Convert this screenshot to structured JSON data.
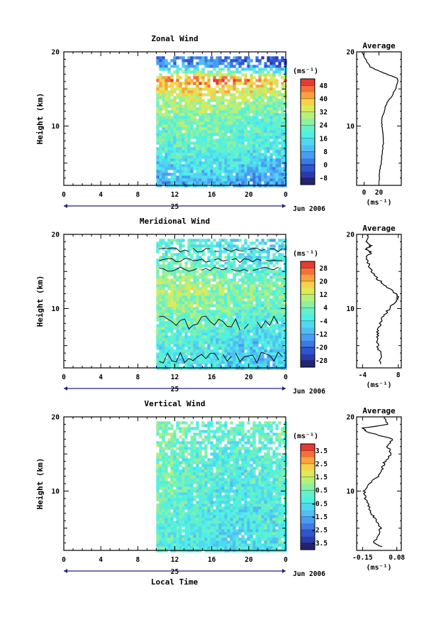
{
  "figure": {
    "xaxis_label": "Local Time",
    "date_label": "Jun 2006",
    "day_label": "25",
    "x_ticks": [
      "0",
      "4",
      "8",
      "12",
      "16",
      "20",
      "0"
    ],
    "y_ticks": [
      "20",
      "10"
    ],
    "ylabel": "Height (km)",
    "units": "(ms⁻¹)",
    "average_title": "Average"
  },
  "chart_data": [
    {
      "type": "heatmap",
      "title": "Zonal Wind",
      "ylabel": "Height (km)",
      "xlabel": "Local Time",
      "xlim_hours": [
        0,
        24
      ],
      "ylim_km": [
        2,
        20
      ],
      "data_start_hour": 10,
      "colorbar": {
        "units": "(ms⁻¹)",
        "ticks": [
          "48",
          "40",
          "32",
          "24",
          "16",
          "8",
          "0",
          "-8"
        ],
        "tick_values": [
          48,
          40,
          32,
          24,
          16,
          8,
          0,
          -8
        ],
        "range": [
          -12,
          52
        ]
      },
      "field_profile": [
        {
          "height_km": 3,
          "value": 8
        },
        {
          "height_km": 5,
          "value": 14
        },
        {
          "height_km": 8,
          "value": 20
        },
        {
          "height_km": 11,
          "value": 22
        },
        {
          "height_km": 14,
          "value": 30
        },
        {
          "height_km": 16.5,
          "value": 42
        },
        {
          "height_km": 18.5,
          "value": 2
        }
      ],
      "average_profile": {
        "title": "Average",
        "x_ticks": [
          "0",
          "20"
        ],
        "xlim": [
          -10,
          50
        ],
        "heights_km": [
          2.5,
          4,
          5,
          6,
          8,
          9,
          10,
          11,
          12,
          13,
          14,
          15,
          16,
          16.5,
          17,
          17.5,
          18,
          19,
          20
        ],
        "values": [
          20,
          21,
          23,
          24,
          26,
          25,
          24,
          24,
          27,
          30,
          37,
          42,
          46,
          44,
          30,
          18,
          8,
          2,
          -3
        ]
      }
    },
    {
      "type": "heatmap",
      "title": "Meridional Wind",
      "ylabel": "Height (km)",
      "xlabel": "Local Time",
      "xlim_hours": [
        0,
        24
      ],
      "ylim_km": [
        2,
        20
      ],
      "data_start_hour": 10,
      "colorbar": {
        "units": "(ms⁻¹)",
        "ticks": [
          "28",
          "20",
          "12",
          "4",
          "-4",
          "-12",
          "-20",
          "-28"
        ],
        "tick_values": [
          28,
          20,
          12,
          4,
          -4,
          -12,
          -20,
          -28
        ],
        "range": [
          -32,
          32
        ]
      },
      "field_profile": [
        {
          "height_km": 3,
          "value": -6
        },
        {
          "height_km": 6,
          "value": -3
        },
        {
          "height_km": 10,
          "value": 4
        },
        {
          "height_km": 13,
          "value": 8
        },
        {
          "height_km": 16,
          "value": 0
        },
        {
          "height_km": 18.5,
          "value": -3
        }
      ],
      "average_profile": {
        "title": "Average",
        "x_ticks": [
          "-4",
          "8"
        ],
        "xlim": [
          -6,
          9
        ],
        "heights_km": [
          2.5,
          4,
          5,
          6,
          7,
          8,
          9,
          10,
          11,
          11.5,
          12,
          13,
          14,
          15,
          16,
          17,
          17.5,
          18,
          18.5,
          19,
          20
        ],
        "values": [
          2,
          2,
          1,
          1,
          1,
          2,
          3,
          5,
          7,
          8,
          7,
          4,
          1,
          -1,
          -2,
          -3,
          -1,
          -3,
          -1,
          -3,
          -2
        ]
      }
    },
    {
      "type": "heatmap",
      "title": "Vertical Wind",
      "ylabel": "Height (km)",
      "xlabel": "Local Time",
      "xlim_hours": [
        0,
        24
      ],
      "ylim_km": [
        2,
        20
      ],
      "data_start_hour": 10,
      "colorbar": {
        "units": "(ms⁻¹)",
        "ticks": [
          "3.5",
          "2.5",
          "1.5",
          "0.5",
          "-0.5",
          "-1.5",
          "-2.5",
          "-3.5"
        ],
        "tick_values": [
          3.5,
          2.5,
          1.5,
          0.5,
          -0.5,
          -1.5,
          -2.5,
          -3.5
        ],
        "range": [
          -4,
          4
        ]
      },
      "field_profile": [
        {
          "height_km": 3,
          "value": -0.3
        },
        {
          "height_km": 8,
          "value": -0.1
        },
        {
          "height_km": 12,
          "value": 0.1
        },
        {
          "height_km": 16,
          "value": 0.2
        },
        {
          "height_km": 19,
          "value": 0.4
        }
      ],
      "average_profile": {
        "title": "Average",
        "x_ticks": [
          "-0.15",
          "0.08"
        ],
        "xlim": [
          -0.19,
          0.11
        ],
        "heights_km": [
          2.5,
          3,
          4,
          5,
          6,
          7,
          8,
          9,
          10,
          11,
          12,
          13,
          14,
          15,
          16,
          17,
          18,
          18.5,
          19,
          20
        ],
        "values": [
          -0.02,
          -0.08,
          -0.04,
          -0.03,
          -0.06,
          -0.09,
          -0.11,
          -0.13,
          -0.14,
          -0.1,
          -0.05,
          -0.02,
          0.0,
          0.04,
          0.02,
          0.05,
          -0.12,
          -0.15,
          0.02,
          0.0
        ]
      }
    }
  ]
}
